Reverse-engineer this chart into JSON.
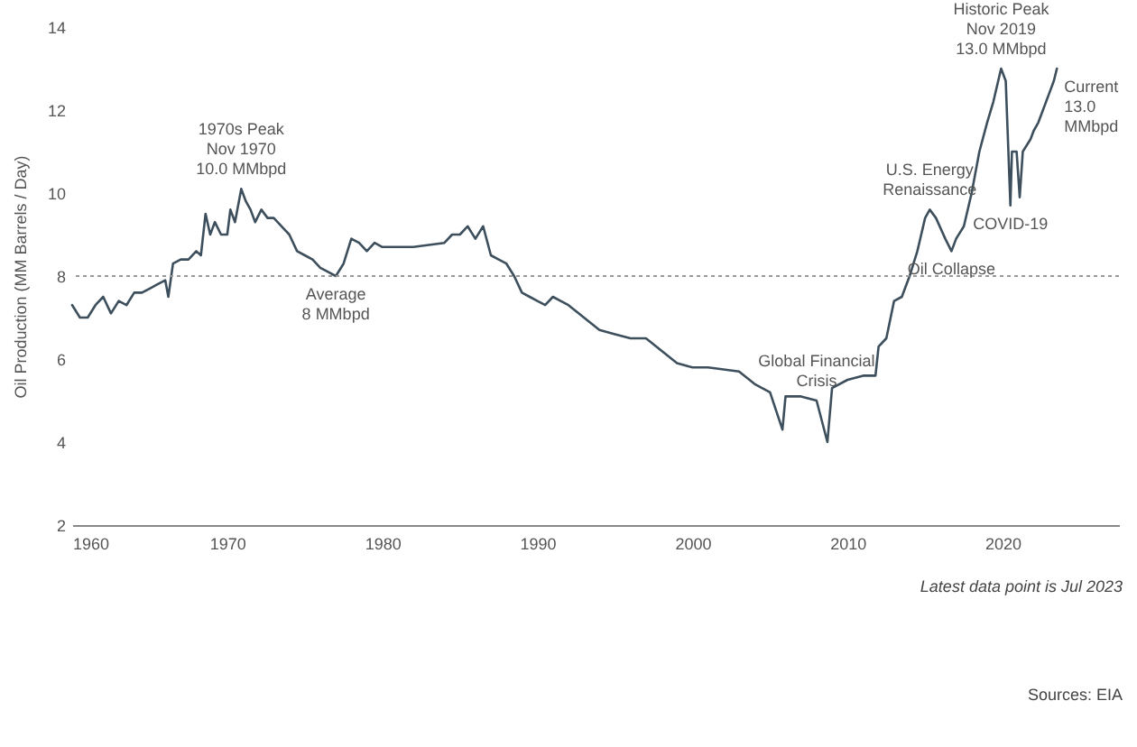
{
  "chart_data": {
    "type": "line",
    "ylabel": "Oil Production (MM Barrels / Day)",
    "x": [
      1960,
      1960.5,
      1961,
      1961.5,
      1962,
      1962.5,
      1963,
      1963.5,
      1964,
      1964.5,
      1965,
      1965.5,
      1966,
      1966.2,
      1966.5,
      1967,
      1967.5,
      1968,
      1968.3,
      1968.6,
      1968.9,
      1969.2,
      1969.6,
      1970,
      1970.2,
      1970.5,
      1970.9,
      1971.2,
      1971.5,
      1971.8,
      1972.2,
      1972.6,
      1973,
      1973.5,
      1974,
      1974.5,
      1975,
      1975.5,
      1976,
      1976.5,
      1977,
      1977.5,
      1978,
      1978.5,
      1979,
      1979.5,
      1980,
      1981,
      1982,
      1983,
      1984,
      1984.5,
      1985,
      1985.5,
      1986,
      1986.5,
      1987,
      1987.5,
      1988,
      1988.5,
      1989,
      1989.5,
      1990,
      1990.5,
      1991,
      1991.5,
      1992,
      1993,
      1994,
      1995,
      1996,
      1997,
      1998,
      1999,
      2000,
      2001,
      2002,
      2003,
      2004,
      2005,
      2005.8,
      2006,
      2007,
      2008,
      2008.7,
      2009,
      2010,
      2011,
      2011.8,
      2012,
      2012.5,
      2013,
      2013.5,
      2014,
      2014.5,
      2015,
      2015.3,
      2015.7,
      2016.3,
      2016.7,
      2017,
      2017.5,
      2018,
      2018.5,
      2019,
      2019.4,
      2019.9,
      2020.2,
      2020.5,
      2020.6,
      2020.9,
      2021.1,
      2021.3,
      2021.8,
      2022,
      2022.3,
      2022.6,
      2023,
      2023.3,
      2023.5
    ],
    "values": [
      7.3,
      7.0,
      7.0,
      7.3,
      7.5,
      7.1,
      7.4,
      7.3,
      7.6,
      7.6,
      7.7,
      7.8,
      7.9,
      7.5,
      8.3,
      8.4,
      8.4,
      8.6,
      8.5,
      9.5,
      9.0,
      9.3,
      9.0,
      9.0,
      9.6,
      9.3,
      10.1,
      9.8,
      9.6,
      9.3,
      9.6,
      9.4,
      9.4,
      9.2,
      9.0,
      8.6,
      8.5,
      8.4,
      8.2,
      8.1,
      8.0,
      8.3,
      8.9,
      8.8,
      8.6,
      8.8,
      8.7,
      8.7,
      8.7,
      8.75,
      8.8,
      9.0,
      9.0,
      9.2,
      8.9,
      9.2,
      8.5,
      8.4,
      8.3,
      8.0,
      7.6,
      7.5,
      7.4,
      7.3,
      7.5,
      7.4,
      7.3,
      7.0,
      6.7,
      6.6,
      6.5,
      6.5,
      6.2,
      5.9,
      5.8,
      5.8,
      5.75,
      5.7,
      5.4,
      5.2,
      4.3,
      5.1,
      5.1,
      5.0,
      4.0,
      5.3,
      5.5,
      5.6,
      5.6,
      6.3,
      6.5,
      7.4,
      7.5,
      8.0,
      8.6,
      9.4,
      9.6,
      9.4,
      8.9,
      8.6,
      8.9,
      9.2,
      10.0,
      11.0,
      11.7,
      12.2,
      13.0,
      12.7,
      9.7,
      11.0,
      11.0,
      9.9,
      11.0,
      11.3,
      11.5,
      11.7,
      12.0,
      12.4,
      12.7,
      13.0
    ],
    "color": "#3d4f5c",
    "xlim": [
      1960,
      2027.5
    ],
    "xticks": [
      1960,
      1970,
      1980,
      1990,
      2000,
      2010,
      2020
    ],
    "ylim": [
      2,
      14
    ],
    "yticks": [
      2,
      4,
      6,
      8,
      10,
      12,
      14
    ],
    "grid": false,
    "marker": "none",
    "line_style": "solid",
    "ref_lines": [
      {
        "axis": "y",
        "value": 8,
        "color": "#999999",
        "line_style": "dotted"
      }
    ],
    "annotations": [
      {
        "text": "1970s Peak\nNov 1970\n10.0 MMbpd",
        "x": 1970.9,
        "y": 10.1
      },
      {
        "text": "Average\n8 MMbpd",
        "x": 1977,
        "y": 8.0
      },
      {
        "text": "Global Financial\nCrisis",
        "x": 2008,
        "y": 5.0
      },
      {
        "text": "U.S. Energy\nRenaissance",
        "x": 2015.3,
        "y": 9.6
      },
      {
        "text": "Oil Collapse",
        "x": 2016.7,
        "y": 8.6
      },
      {
        "text": "COVID-19",
        "x": 2020.5,
        "y": 9.7
      },
      {
        "text": "Historic Peak\nNov 2019\n13.0 MMbpd",
        "x": 2019.9,
        "y": 13.0
      },
      {
        "text": "Current\n13.0\nMMbpd",
        "x": 2023.5,
        "y": 13.0
      },
      "Latest data point is Jul 2023",
      "Sources: EIA"
    ]
  }
}
